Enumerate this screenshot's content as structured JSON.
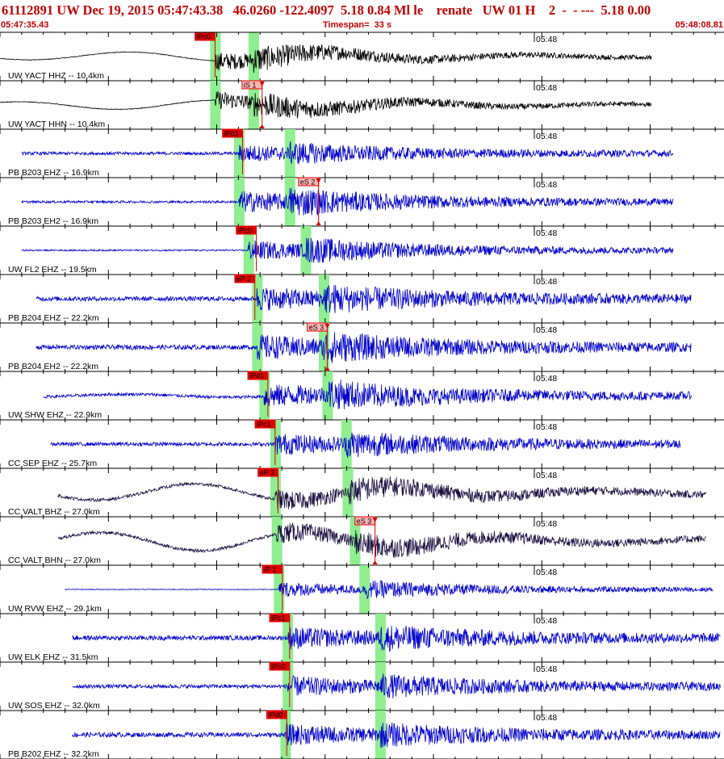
{
  "header": {
    "title_line": "61112891 UW Dec 19, 2015 05:47:43.38   46.0260 -122.4097  5.18 0.84 Ml le    renate   UW 01 H    2  -  - ---  5.18 0.00",
    "start_time": "05:47:35.43",
    "timespan": "Timespan=  33 s",
    "end_time": "05:48:08.81"
  },
  "colors": {
    "header_red": "#c00000",
    "pick_red": "#e00000",
    "green_window": "#90ee90",
    "trace_black": "#000000",
    "trace_blue": "#0000cc",
    "trace_dark": "#1a1040"
  },
  "time_mark_label": "05:48",
  "traces": [
    {
      "label": "UW YACT HHZ -- 10.4km",
      "color": "black",
      "amp": 0.65,
      "low": 0.25,
      "noise": 0.02,
      "start": 0.0,
      "end": 0.9,
      "greens": [
        0.297,
        0.35
      ],
      "picks": [
        {
          "label": "iPc0",
          "pos": 0.297
        }
      ]
    },
    {
      "label": "UW YACT HHN -- 10.4km",
      "color": "black",
      "amp": 0.65,
      "low": 0.25,
      "noise": 0.02,
      "start": 0.0,
      "end": 0.9,
      "greens": [
        0.297,
        0.35
      ],
      "picks": [
        {
          "label": "iS 1",
          "pos": 0.362
        }
      ]
    },
    {
      "label": "PB B203 EHZ -- 16.9km",
      "color": "blue",
      "amp": 0.55,
      "low": 0.0,
      "noise": 0.08,
      "start": 0.03,
      "end": 0.93,
      "greens": [
        0.33,
        0.4
      ],
      "picks": [
        {
          "label": "iPd1",
          "pos": 0.335
        }
      ]
    },
    {
      "label": "PB B203 EH2 -- 16.9km",
      "color": "blue",
      "amp": 0.75,
      "low": 0.0,
      "noise": 0.06,
      "start": 0.03,
      "end": 0.93,
      "greens": [
        0.33,
        0.4
      ],
      "picks": [
        {
          "label": "eS 2",
          "pos": 0.44
        }
      ]
    },
    {
      "label": "UW FL2 EHZ -- 19.5km",
      "color": "blue",
      "amp": 0.7,
      "low": 0.0,
      "noise": 0.04,
      "start": 0.03,
      "end": 0.93,
      "greens": [
        0.343,
        0.422
      ],
      "picks": [
        {
          "label": "iPc0",
          "pos": 0.354
        }
      ]
    },
    {
      "label": "PB B204 EHZ -- 22.2km",
      "color": "blue",
      "amp": 0.75,
      "low": 0.0,
      "noise": 0.12,
      "start": 0.05,
      "end": 0.955,
      "greens": [
        0.355,
        0.447
      ],
      "picks": [
        {
          "label": "eP 2",
          "pos": 0.352
        }
      ]
    },
    {
      "label": "PB B204 EH2 -- 22.2km",
      "color": "blue",
      "amp": 0.8,
      "low": 0.0,
      "noise": 0.12,
      "start": 0.05,
      "end": 0.955,
      "greens": [
        0.355,
        0.447
      ],
      "picks": [
        {
          "label": "eS 3",
          "pos": 0.452
        }
      ]
    },
    {
      "label": "UW SHW EHZ -- 22.9km",
      "color": "blue",
      "amp": 0.8,
      "low": 0.08,
      "noise": 0.08,
      "start": 0.06,
      "end": 0.955,
      "greens": [
        0.365,
        0.452
      ],
      "picks": [
        {
          "label": "iPd1",
          "pos": 0.37
        }
      ]
    },
    {
      "label": "CC SEP EHZ -- 25.7km",
      "color": "blue",
      "amp": 0.7,
      "low": 0.0,
      "noise": 0.1,
      "start": 0.07,
      "end": 0.94,
      "greens": [
        0.38,
        0.478
      ],
      "picks": [
        {
          "label": "iPc1",
          "pos": 0.38
        }
      ]
    },
    {
      "label": "CC VALT BHZ -- 27.0km",
      "color": "dark",
      "amp": 0.65,
      "low": 0.45,
      "noise": 0.08,
      "start": 0.08,
      "end": 0.975,
      "greens": [
        0.38,
        0.48
      ],
      "picks": [
        {
          "label": "eP 3",
          "pos": 0.384
        }
      ]
    },
    {
      "label": "CC VALT BHN -- 27.0km",
      "color": "dark",
      "amp": 0.65,
      "low": 0.5,
      "noise": 0.08,
      "start": 0.08,
      "end": 0.975,
      "greens": [
        0.382,
        0.49
      ],
      "picks": [
        {
          "label": "eS 3",
          "pos": 0.518
        }
      ]
    },
    {
      "label": "UW RVW EHZ -- 29.1km",
      "color": "blue",
      "amp": 0.55,
      "low": 0.0,
      "noise": 0.02,
      "start": 0.09,
      "end": 0.985,
      "greens": [
        0.385,
        0.503
      ],
      "picks": [
        {
          "label": "iP 1",
          "pos": 0.39
        }
      ]
    },
    {
      "label": "UW ELK EHZ -- 31.5km",
      "color": "blue",
      "amp": 0.7,
      "low": 0.0,
      "noise": 0.12,
      "start": 0.1,
      "end": 0.995,
      "greens": [
        0.397,
        0.525
      ],
      "picks": [
        {
          "label": "iPc1",
          "pos": 0.4
        }
      ]
    },
    {
      "label": "UW SOS EHZ -- 32.0km",
      "color": "blue",
      "amp": 0.65,
      "low": 0.0,
      "noise": 0.1,
      "start": 0.1,
      "end": 0.995,
      "greens": [
        0.397,
        0.525
      ],
      "picks": [
        {
          "label": "iPc0",
          "pos": 0.4
        }
      ]
    },
    {
      "label": "PB B202 EHZ -- 32.2km",
      "color": "blue",
      "amp": 0.65,
      "low": 0.0,
      "noise": 0.12,
      "start": 0.1,
      "end": 0.995,
      "greens": [
        0.394,
        0.525
      ],
      "picks": [
        {
          "label": "iPd0",
          "pos": 0.396
        }
      ]
    }
  ]
}
